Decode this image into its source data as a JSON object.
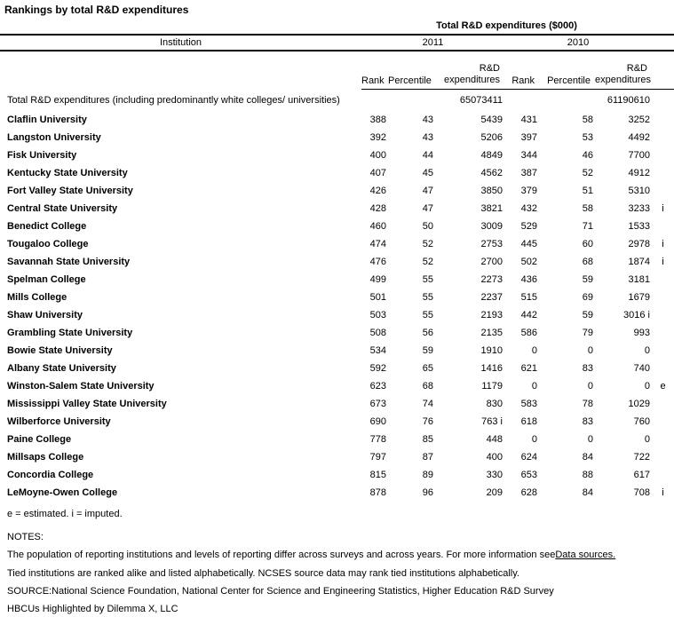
{
  "title": "Rankings by total R&D expenditures",
  "table": {
    "group_header": "Total R&D expenditures ($000)",
    "institution_header": "Institution",
    "years": [
      "2011",
      "2010"
    ],
    "sub": {
      "rank": "Rank",
      "percentile": "Percentile",
      "rd": "R&D\nexpenditures"
    },
    "summary_row": {
      "institution": "Total R&D expenditures (including predominantly white colleges/ universities)",
      "rd2011": "65073411",
      "rd2010": "61190610"
    },
    "rows": [
      {
        "institution": "Claflin University",
        "rank2011": "388",
        "pct2011": "43",
        "rd2011": "5439",
        "rank2010": "431",
        "pct2010": "58",
        "rd2010": "3252",
        "flag": ""
      },
      {
        "institution": "Langston University",
        "rank2011": "392",
        "pct2011": "43",
        "rd2011": "5206",
        "rank2010": "397",
        "pct2010": "53",
        "rd2010": "4492",
        "flag": ""
      },
      {
        "institution": "Fisk University",
        "rank2011": "400",
        "pct2011": "44",
        "rd2011": "4849",
        "rank2010": "344",
        "pct2010": "46",
        "rd2010": "7700",
        "flag": ""
      },
      {
        "institution": "Kentucky State University",
        "rank2011": "407",
        "pct2011": "45",
        "rd2011": "4562",
        "rank2010": "387",
        "pct2010": "52",
        "rd2010": "4912",
        "flag": ""
      },
      {
        "institution": "Fort Valley State University",
        "rank2011": "426",
        "pct2011": "47",
        "rd2011": "3850",
        "rank2010": "379",
        "pct2010": "51",
        "rd2010": "5310",
        "flag": ""
      },
      {
        "institution": "Central State University",
        "rank2011": "428",
        "pct2011": "47",
        "rd2011": "3821",
        "rank2010": "432",
        "pct2010": "58",
        "rd2010": "3233",
        "flag": "i"
      },
      {
        "institution": "Benedict College",
        "rank2011": "460",
        "pct2011": "50",
        "rd2011": "3009",
        "rank2010": "529",
        "pct2010": "71",
        "rd2010": "1533",
        "flag": ""
      },
      {
        "institution": "Tougaloo College",
        "rank2011": "474",
        "pct2011": "52",
        "rd2011": "2753",
        "rank2010": "445",
        "pct2010": "60",
        "rd2010": "2978",
        "flag": "i"
      },
      {
        "institution": "Savannah State University",
        "rank2011": "476",
        "pct2011": "52",
        "rd2011": "2700",
        "rank2010": "502",
        "pct2010": "68",
        "rd2010": "1874",
        "flag": "i"
      },
      {
        "institution": "Spelman College",
        "rank2011": "499",
        "pct2011": "55",
        "rd2011": "2273",
        "rank2010": "436",
        "pct2010": "59",
        "rd2010": "3181",
        "flag": ""
      },
      {
        "institution": "Mills College",
        "rank2011": "501",
        "pct2011": "55",
        "rd2011": "2237",
        "rank2010": "515",
        "pct2010": "69",
        "rd2010": "1679",
        "flag": ""
      },
      {
        "institution": "Shaw University",
        "rank2011": "503",
        "pct2011": "55",
        "rd2011": "2193",
        "rank2010": "442",
        "pct2010": "59",
        "rd2010": "3016 i",
        "flag": ""
      },
      {
        "institution": "Grambling State University",
        "rank2011": "508",
        "pct2011": "56",
        "rd2011": "2135",
        "rank2010": "586",
        "pct2010": "79",
        "rd2010": "993",
        "flag": ""
      },
      {
        "institution": "Bowie State University",
        "rank2011": "534",
        "pct2011": "59",
        "rd2011": "1910",
        "rank2010": "0",
        "pct2010": "0",
        "rd2010": "0",
        "flag": ""
      },
      {
        "institution": "Albany State University",
        "rank2011": "592",
        "pct2011": "65",
        "rd2011": "1416",
        "rank2010": "621",
        "pct2010": "83",
        "rd2010": "740",
        "flag": ""
      },
      {
        "institution": "Winston-Salem State University",
        "rank2011": "623",
        "pct2011": "68",
        "rd2011": "1179",
        "rank2010": "0",
        "pct2010": "0",
        "rd2010": "0",
        "flag": "e"
      },
      {
        "institution": "Mississippi Valley State University",
        "rank2011": "673",
        "pct2011": "74",
        "rd2011": "830",
        "rank2010": "583",
        "pct2010": "78",
        "rd2010": "1029",
        "flag": ""
      },
      {
        "institution": "Wilberforce University",
        "rank2011": "690",
        "pct2011": "76",
        "rd2011": "763 i",
        "rank2010": "618",
        "pct2010": "83",
        "rd2010": "760",
        "flag": ""
      },
      {
        "institution": "Paine College",
        "rank2011": "778",
        "pct2011": "85",
        "rd2011": "448",
        "rank2010": "0",
        "pct2010": "0",
        "rd2010": "0",
        "flag": ""
      },
      {
        "institution": "Millsaps College",
        "rank2011": "797",
        "pct2011": "87",
        "rd2011": "400",
        "rank2010": "624",
        "pct2010": "84",
        "rd2010": "722",
        "flag": ""
      },
      {
        "institution": "Concordia College",
        "rank2011": "815",
        "pct2011": "89",
        "rd2011": "330",
        "rank2010": "653",
        "pct2010": "88",
        "rd2010": "617",
        "flag": ""
      },
      {
        "institution": "LeMoyne-Owen College",
        "rank2011": "878",
        "pct2011": "96",
        "rd2011": "209",
        "rank2010": "628",
        "pct2010": "84",
        "rd2010": "708",
        "flag": "i"
      }
    ]
  },
  "footnote": "e = estimated. i = imputed.",
  "notes": {
    "label": "NOTES:",
    "line1": "The population of reporting institutions and levels of reporting differ across surveys and across years. For more information see",
    "data_sources_link": "Data sources.",
    "line2": "Tied institutions are ranked alike and listed alphabetically. NCSES source data may rank tied institutions alphabetically.",
    "source_line": "SOURCE:National Science Foundation, National Center for Science and Engineering Statistics, Higher Education R&D Survey",
    "credit_line": "HBCUs Highlighted by Dilemma X, LLC"
  }
}
